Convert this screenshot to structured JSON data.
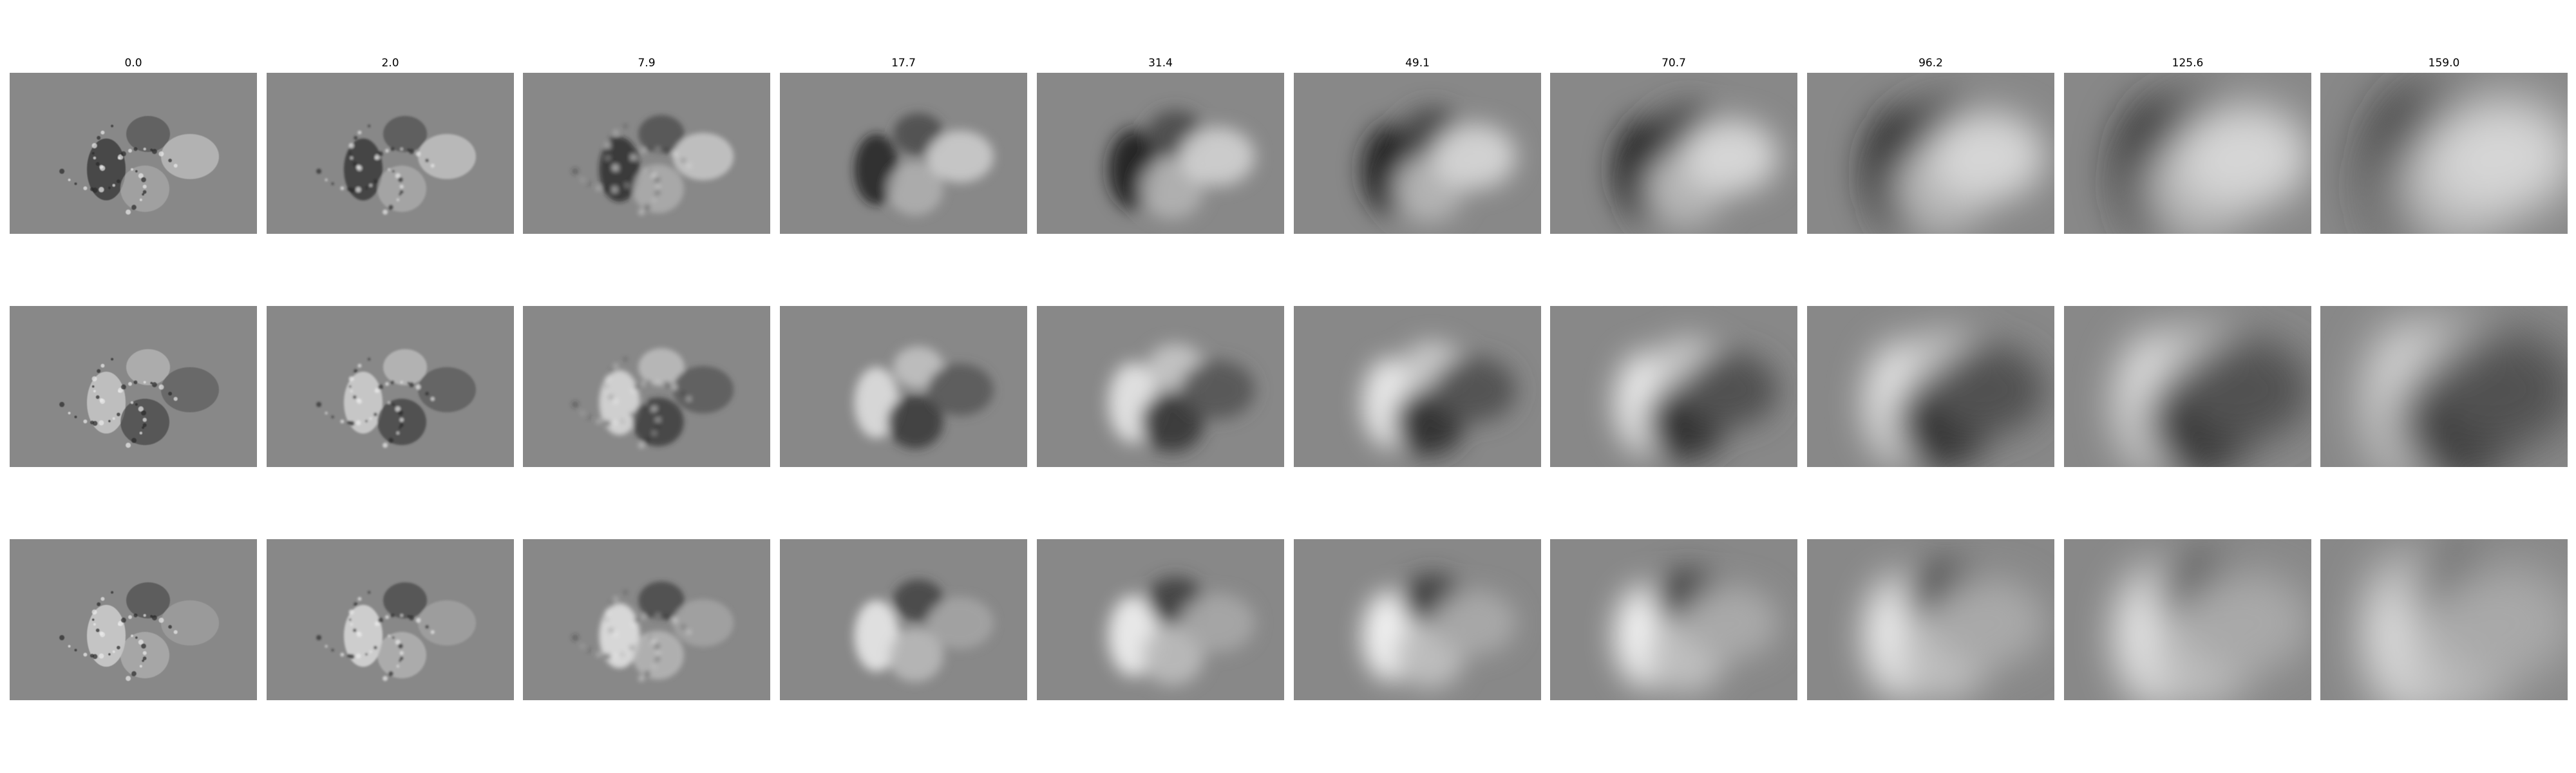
{
  "columns": [
    {
      "title": "0.0",
      "blur": 0.6,
      "contrast": 1.0
    },
    {
      "title": "2.0",
      "blur": 1.5,
      "contrast": 1.0
    },
    {
      "title": "7.9",
      "blur": 4,
      "contrast": 1.05
    },
    {
      "title": "17.7",
      "blur": 8,
      "contrast": 1.15
    },
    {
      "title": "31.4",
      "blur": 13,
      "contrast": 1.3
    },
    {
      "title": "49.1",
      "blur": 18,
      "contrast": 1.45
    },
    {
      "title": "70.7",
      "blur": 23,
      "contrast": 1.65
    },
    {
      "title": "96.2",
      "blur": 27,
      "contrast": 2.0
    },
    {
      "title": "125.6",
      "blur": 31,
      "contrast": 2.3
    },
    {
      "title": "159.0",
      "blur": 36,
      "contrast": 2.6
    }
  ],
  "rows": [
    {
      "name": "row-1",
      "tone": [
        -1,
        -0.6,
        0.4,
        0.7
      ]
    },
    {
      "name": "row-2",
      "tone": [
        0.9,
        0.6,
        -0.8,
        -0.5
      ]
    },
    {
      "name": "row-3",
      "tone": [
        1,
        -0.7,
        0.5,
        0.3
      ]
    }
  ],
  "colors": {
    "background": "#ffffff",
    "panel_gray": "#888888"
  }
}
